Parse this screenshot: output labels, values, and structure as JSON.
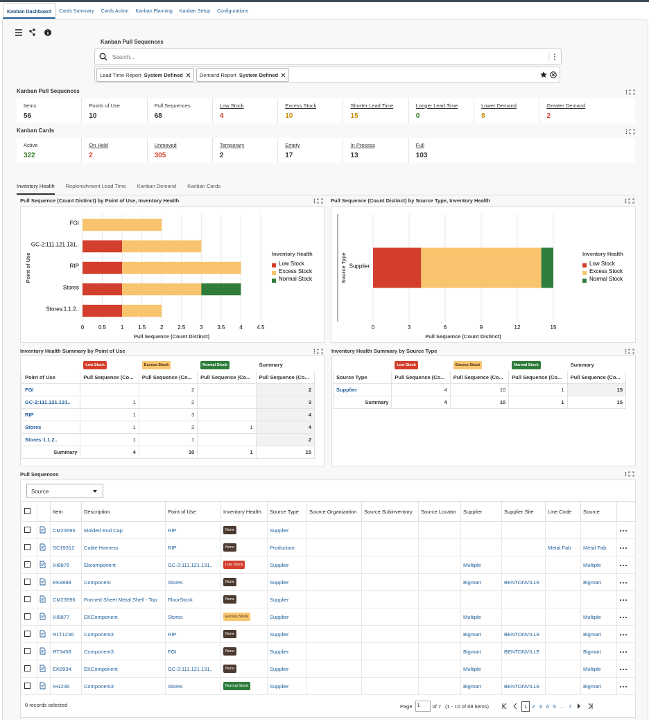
{
  "tabs": [
    "Kanban Dashboard",
    "Cards Summary",
    "Cards Action",
    "Kanban Planning",
    "Kanban Setup",
    "Configurations"
  ],
  "active_tab": 0,
  "page_title": "Kanban Pull Sequences",
  "search_placeholder": "Search...",
  "filters": [
    {
      "label": "Lead Time Report",
      "value": "System Defined"
    },
    {
      "label": "Demand Report",
      "value": "System Defined"
    }
  ],
  "pull_metrics": {
    "title": "Kanban Pull Sequences",
    "items": [
      {
        "label": "Items",
        "value": 56,
        "color": "#333333",
        "link": false
      },
      {
        "label": "Points of Use",
        "value": 10,
        "color": "#333333",
        "link": false
      },
      {
        "label": "Pull Sequences",
        "value": 68,
        "color": "#333333",
        "link": false
      },
      {
        "label": "Low Stock",
        "value": 4,
        "color": "#d33f2c",
        "link": true
      },
      {
        "label": "Excess Stock",
        "value": 10,
        "color": "#c98a00",
        "link": true
      },
      {
        "label": "Shorter Lead Time",
        "value": 15,
        "color": "#c98a00",
        "link": true
      },
      {
        "label": "Longer Lead Time",
        "value": 0,
        "color": "#3a7d23",
        "link": true
      },
      {
        "label": "Lower Demand",
        "value": 8,
        "color": "#c98a00",
        "link": true
      },
      {
        "label": "Greater Demand",
        "value": 2,
        "color": "#d33f2c",
        "link": true
      }
    ]
  },
  "card_metrics": {
    "title": "Kanban Cards",
    "items": [
      {
        "label": "Active",
        "value": 322,
        "color": "#3a7d23",
        "link": false
      },
      {
        "label": "On Hold",
        "value": 2,
        "color": "#d33f2c",
        "link": true
      },
      {
        "label": "Unmoved",
        "value": 305,
        "color": "#d33f2c",
        "link": true
      },
      {
        "label": "Temporary",
        "value": 2,
        "color": "#333333",
        "link": true
      },
      {
        "label": "Empty",
        "value": 17,
        "color": "#333333",
        "link": true
      },
      {
        "label": "In Process",
        "value": 13,
        "color": "#333333",
        "link": true
      },
      {
        "label": "Full",
        "value": 103,
        "color": "#333333",
        "link": true
      }
    ]
  },
  "sub_tabs": [
    "Inventory Health",
    "Replenishment Lead Time",
    "Kanban Demand",
    "Kanban Cards"
  ],
  "active_sub_tab": 0,
  "health_colors": {
    "None": "#4b3a2f",
    "Low Stock": "#d33f2c",
    "Excess Stock": "#f8c66f",
    "Normal Stock": "#2f7d3b"
  },
  "charts": [
    {
      "type": "bar",
      "orientation": "horizontal",
      "stacked": true,
      "title": "Pull Sequence (Count Distinct) by Point of Use, Inventory Health",
      "x_label": "Pull Sequence (Count Distinct)",
      "y_label": "Point of Use",
      "legend_title": "Inventory Health",
      "categories": [
        "FGI",
        "GC-2:111.121.131..",
        "RIP",
        "Stores",
        "Stores:1.1.2.."
      ],
      "series": [
        {
          "name": "Low Stock",
          "color": "#d33f2c",
          "values": [
            null,
            1,
            1,
            1,
            1
          ]
        },
        {
          "name": "Excess Stock",
          "color": "#f9c46e",
          "values": [
            2,
            2,
            3,
            2,
            1
          ]
        },
        {
          "name": "Normal Stock",
          "color": "#2f7d3b",
          "values": [
            null,
            null,
            null,
            1,
            null
          ]
        }
      ],
      "xlim": [
        0,
        4.5
      ],
      "xticks": [
        0,
        0.5,
        1,
        1.5,
        2,
        2.5,
        3,
        3.5,
        4,
        4.5
      ],
      "grid": true
    },
    {
      "type": "bar",
      "orientation": "horizontal",
      "stacked": true,
      "title": "Pull Sequence (Count Distinct) by Source Type, Inventory Health",
      "x_label": "Pull Sequence (Count Distinct)",
      "y_label": "Source Type",
      "legend_title": "Inventory Health",
      "categories": [
        "Supplier"
      ],
      "series": [
        {
          "name": "Low Stock",
          "color": "#d33f2c",
          "values": [
            4
          ]
        },
        {
          "name": "Excess Stock",
          "color": "#f9c46e",
          "values": [
            10
          ]
        },
        {
          "name": "Normal Stock",
          "color": "#2f7d3b",
          "values": [
            1
          ]
        }
      ],
      "xlim": [
        0,
        15
      ],
      "xticks": [
        0,
        3,
        6,
        9,
        12,
        15
      ],
      "grid": true
    }
  ],
  "summary_tables": [
    {
      "title": "Inventory Health Summary by Point of Use",
      "header_groups": [
        null,
        "Low Stock",
        "Excess Stock",
        "Normal Stock",
        "Summary"
      ],
      "columns": [
        "Point of Use",
        "Pull Sequence (Co...",
        "Pull Sequence (Co...",
        "Pull Sequence (Co...",
        "Pull Sequence (Co..."
      ],
      "rows": [
        [
          "FGI",
          null,
          2,
          null,
          2
        ],
        [
          "GC-2:111.121.131..",
          1,
          2,
          null,
          3
        ],
        [
          "RIP",
          1,
          3,
          null,
          4
        ],
        [
          "Stores",
          1,
          2,
          1,
          4
        ],
        [
          "Stores:1.1.2..",
          1,
          1,
          null,
          2
        ]
      ],
      "summary_row": [
        "Summary",
        4,
        10,
        1,
        15
      ]
    },
    {
      "title": "Inventory Health Summary by Source Type",
      "header_groups": [
        null,
        "Low Stock",
        "Excess Stock",
        "Normal Stock",
        "Summary"
      ],
      "columns": [
        "Source Type",
        "Pull Sequence (Co...",
        "Pull Sequence (Co...",
        "Pull Sequence (Co...",
        "Pull Sequence (Co..."
      ],
      "rows": [
        [
          "Supplier",
          4,
          10,
          1,
          15
        ]
      ],
      "summary_row": [
        "Summary",
        4,
        10,
        1,
        15
      ]
    }
  ],
  "pull_sequences": {
    "title": "Pull Sequences",
    "selector": "Source",
    "columns": [
      "Item",
      "Description",
      "Point of Use",
      "Inventory Health",
      "Source Type",
      "Source Organization",
      "Source Subinventory",
      "Source Locator",
      "Supplier",
      "Supplier Site",
      "Line Code",
      "Source"
    ],
    "rows": [
      [
        "CM23595",
        "Molded End Cap",
        "RIP",
        "None",
        "Supplier",
        null,
        null,
        null,
        null,
        null,
        null,
        null
      ],
      [
        "SC19312",
        "Cable Harness",
        "RIP",
        "None",
        "Production",
        null,
        null,
        null,
        null,
        null,
        "Metal Fab",
        "Metal Fab"
      ],
      [
        "IH9876",
        "Ekcomponent",
        "GC-2:111.121.131..",
        "Low Stock",
        "Supplier",
        null,
        null,
        null,
        "Multiple",
        null,
        null,
        "Multiple"
      ],
      [
        "EK8888",
        "Component",
        "Stores",
        "None",
        "Supplier",
        null,
        null,
        null,
        "Bigmart",
        "BENTONVILLE",
        null,
        "Bigmart"
      ],
      [
        "CM23596",
        "Formed Sheet Metal Shell - Top",
        "FloorStock",
        "None",
        "Supplier",
        null,
        null,
        null,
        null,
        null,
        null,
        null
      ],
      [
        "IH9877",
        "EKComponent",
        "Stores",
        "Excess Stock",
        "Supplier",
        null,
        null,
        null,
        "Multiple",
        null,
        null,
        "Multiple"
      ],
      [
        "RLT1236",
        "Component3",
        "RIP",
        "None",
        "Supplier",
        null,
        null,
        null,
        "Bigmart",
        "BENTONVILLE",
        null,
        "Bigmart"
      ],
      [
        "RT3458",
        "Component3",
        "FGI",
        "None",
        "Supplier",
        null,
        null,
        null,
        "Bigmart",
        "BENTONVILLE",
        null,
        "Bigmart"
      ],
      [
        "EK8934",
        "EKComponent",
        "GC-2:111.121.131..",
        "None",
        "Supplier",
        null,
        null,
        null,
        "Multiple",
        null,
        null,
        "Multiple"
      ],
      [
        "IH1236",
        "Component3",
        "Stores",
        "Normal Stock",
        "Supplier",
        null,
        null,
        null,
        "Bigmart",
        "BENTONVILLE",
        null,
        "Bigmart"
      ]
    ],
    "selected_text": "0 records selected",
    "page_label": "Page",
    "current_page": 1,
    "page_of": "of 7",
    "range_text": "(1 - 10 of 68 items)",
    "pages": [
      1,
      2,
      3,
      4,
      5,
      "...",
      7
    ]
  }
}
